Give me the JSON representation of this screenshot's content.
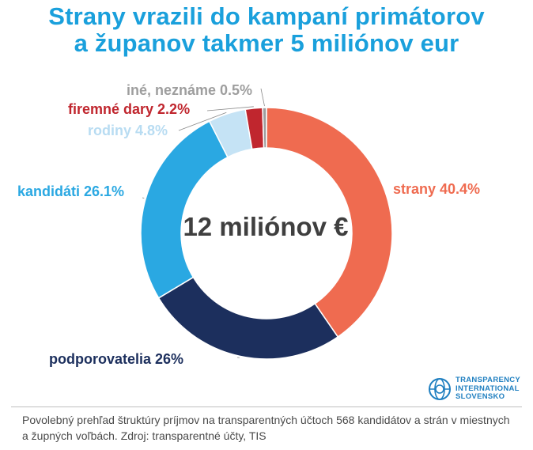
{
  "title": {
    "line1": "Strany vrazili do kampaní primátorov",
    "line2": "a županov takmer 5 miliónov eur"
  },
  "chart_data": {
    "type": "pie",
    "variant": "donut",
    "center_label": "12 miliónov €",
    "slices": [
      {
        "label": "strany",
        "value": 40.4,
        "display": "strany 40.4%",
        "color": "#ef6b50",
        "label_color": "#ef6b50",
        "side": "right"
      },
      {
        "label": "podporovatelia",
        "value": 26.0,
        "display": "podporovatelia 26%",
        "color": "#1c2f5d",
        "label_color": "#1c2f5d",
        "side": "left"
      },
      {
        "label": "kandidáti",
        "value": 26.1,
        "display": "kandidáti 26.1%",
        "color": "#2aa8e2",
        "label_color": "#2aa8e2",
        "side": "left"
      },
      {
        "label": "rodiny",
        "value": 4.8,
        "display": "rodiny 4.8%",
        "color": "#c5e3f5",
        "label_color": "#b8dcf2",
        "side": "left"
      },
      {
        "label": "firemné dary",
        "value": 2.2,
        "display": "firemné dary 2.2%",
        "color": "#c0262e",
        "label_color": "#c0262e",
        "side": "left"
      },
      {
        "label": "iné, neznáme",
        "value": 0.5,
        "display": "iné, neznáme 0.5%",
        "color": "#9e9e9e",
        "label_color": "#9e9e9e",
        "side": "left"
      }
    ]
  },
  "footnote": "Povolebný prehľad štruktúry príjmov na transparentných účtoch 568 kandidátov a strán v miestnych a župných voľbách. Zdroj: transparentné účty, TIS",
  "logo": {
    "line1": "TRANSPARENCY",
    "line2": "INTERNATIONAL",
    "line3": "SLOVENSKO",
    "color": "#1f7fc0"
  }
}
